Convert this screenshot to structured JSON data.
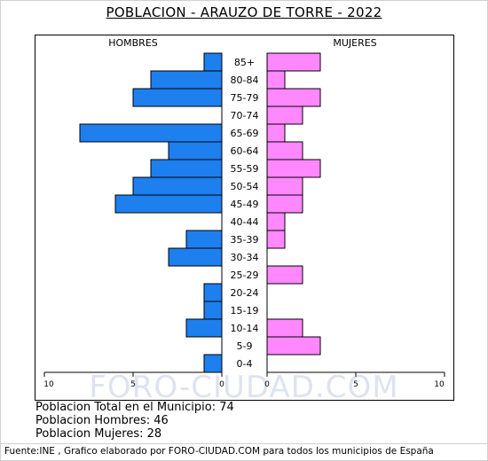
{
  "header": {
    "title": "POBLACION - ARAUZO DE TORRE - 2022"
  },
  "chart_data": {
    "type": "bar",
    "orientation": "horizontal-pyramid",
    "categories": [
      "85+",
      "80-84",
      "75-79",
      "70-74",
      "65-69",
      "60-64",
      "55-59",
      "50-54",
      "45-49",
      "40-44",
      "35-39",
      "30-34",
      "25-29",
      "20-24",
      "15-19",
      "10-14",
      "5-9",
      "0-4"
    ],
    "series": [
      {
        "name": "HOMBRES",
        "values": [
          1,
          4,
          5,
          0,
          8,
          3,
          4,
          5,
          6,
          0,
          2,
          3,
          0,
          1,
          1,
          2,
          0,
          1
        ]
      },
      {
        "name": "MUJERES",
        "values": [
          3,
          1,
          3,
          2,
          1,
          2,
          3,
          2,
          2,
          1,
          1,
          0,
          2,
          0,
          0,
          2,
          3,
          0
        ]
      }
    ],
    "xlim": [
      0,
      10
    ],
    "x_ticks_left": [
      "10",
      "5",
      "0"
    ],
    "x_ticks_right": [
      "0",
      "5",
      "10"
    ],
    "colors": {
      "HOMBRES": "#1e7fef",
      "MUJERES": "#ff88ff"
    },
    "legend": "top"
  },
  "watermark": "FORO-CIUDAD.COM",
  "summary": {
    "total": "Poblacion Total en el Municipio: 74",
    "hombres": "Poblacion Hombres: 46",
    "mujeres": "Poblacion Mujeres: 28"
  },
  "footer": "Fuente:INE , Grafico elaborado por FORO-CIUDAD.COM para todos los municipios de España"
}
